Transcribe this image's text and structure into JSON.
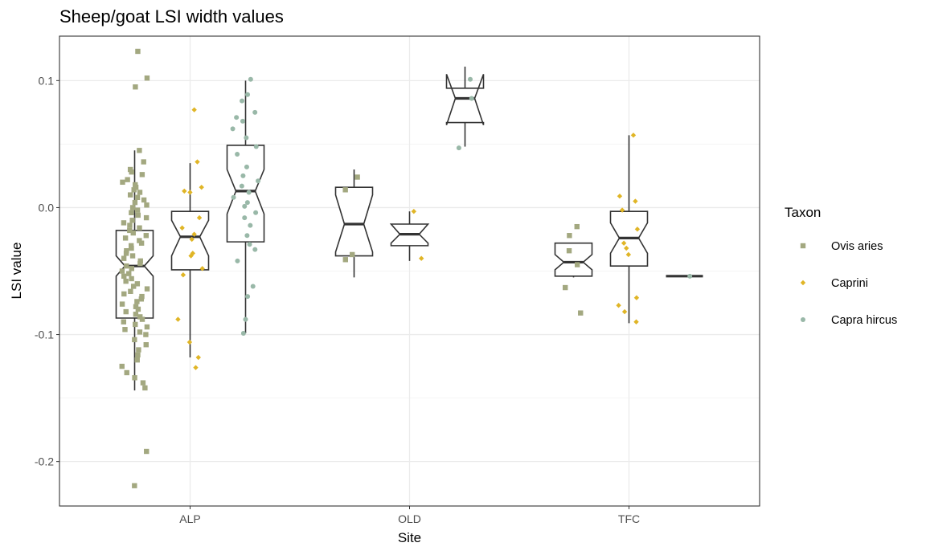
{
  "chart_data": {
    "type": "boxplot",
    "title": "Sheep/goat LSI width values",
    "xlabel": "Site",
    "ylabel": "LSI value",
    "categories": [
      "ALP",
      "OLD",
      "TFC"
    ],
    "ylim": [
      -0.235,
      0.135
    ],
    "yticks": [
      0.1,
      0.0,
      -0.1,
      -0.2
    ],
    "ytick_labels": [
      "0.1",
      "0.0",
      "-0.1",
      "-0.2"
    ],
    "grid": true,
    "legend": {
      "title": "Taxon",
      "placement": "right",
      "entries": [
        "Ovis aries",
        "Caprini",
        "Capra hircus"
      ]
    },
    "series": [
      {
        "name": "Ovis aries",
        "color": "#a3a880",
        "marker": "square",
        "boxes": [
          {
            "category": "ALP",
            "whisker_low": -0.144,
            "q1": -0.087,
            "median": -0.046,
            "q3": -0.018,
            "whisker_high": 0.045,
            "notch_low": -0.054,
            "notch_high": -0.038
          },
          {
            "category": "OLD",
            "whisker_low": -0.055,
            "q1": -0.038,
            "median": -0.013,
            "q3": 0.016,
            "whisker_high": 0.03,
            "notch_low": -0.035,
            "notch_high": 0.01
          },
          {
            "category": "TFC",
            "whisker_low": -0.055,
            "q1": -0.054,
            "median": -0.043,
            "q3": -0.028,
            "whisker_high": -0.028,
            "notch_low": -0.049,
            "notch_high": -0.037
          }
        ],
        "points": [
          {
            "category": "ALP",
            "values": [
              0.123,
              0.102,
              0.095,
              0.045,
              0.036,
              0.03,
              0.028,
              0.026,
              0.022,
              0.02,
              0.018,
              0.016,
              0.014,
              0.012,
              0.01,
              0.008,
              0.006,
              0.004,
              0.002,
              0.0,
              -0.002,
              -0.004,
              -0.006,
              -0.008,
              -0.01,
              -0.012,
              -0.014,
              -0.016,
              -0.018,
              -0.02,
              -0.022,
              -0.024,
              -0.026,
              -0.028,
              -0.03,
              -0.032,
              -0.034,
              -0.036,
              -0.038,
              -0.04,
              -0.042,
              -0.044,
              -0.046,
              -0.048,
              -0.05,
              -0.052,
              -0.054,
              -0.056,
              -0.058,
              -0.06,
              -0.062,
              -0.064,
              -0.066,
              -0.068,
              -0.07,
              -0.072,
              -0.074,
              -0.076,
              -0.078,
              -0.08,
              -0.082,
              -0.084,
              -0.086,
              -0.088,
              -0.09,
              -0.092,
              -0.094,
              -0.096,
              -0.098,
              -0.1,
              -0.104,
              -0.108,
              -0.112,
              -0.116,
              -0.12,
              -0.125,
              -0.13,
              -0.134,
              -0.138,
              -0.142,
              -0.192,
              -0.219
            ]
          },
          {
            "category": "OLD",
            "values": [
              0.024,
              0.014,
              -0.037,
              -0.041
            ]
          },
          {
            "category": "TFC",
            "values": [
              -0.015,
              -0.022,
              -0.034,
              -0.045,
              -0.063,
              -0.083
            ]
          }
        ]
      },
      {
        "name": "Caprini",
        "color": "#e0b526",
        "marker": "diamond",
        "boxes": [
          {
            "category": "ALP",
            "whisker_low": -0.118,
            "q1": -0.049,
            "median": -0.023,
            "q3": -0.003,
            "whisker_high": 0.035,
            "notch_low": -0.038,
            "notch_high": -0.01
          },
          {
            "category": "OLD",
            "whisker_low": -0.042,
            "q1": -0.03,
            "median": -0.021,
            "q3": -0.013,
            "whisker_high": -0.003,
            "notch_low": -0.028,
            "notch_high": -0.013
          },
          {
            "category": "TFC",
            "whisker_low": -0.091,
            "q1": -0.046,
            "median": -0.024,
            "q3": -0.003,
            "whisker_high": 0.057,
            "notch_low": -0.036,
            "notch_high": -0.012
          }
        ],
        "points": [
          {
            "category": "ALP",
            "values": [
              0.077,
              0.036,
              0.016,
              0.013,
              0.012,
              -0.008,
              -0.016,
              -0.021,
              -0.025,
              -0.036,
              -0.038,
              -0.048,
              -0.053,
              -0.088,
              -0.106,
              -0.118,
              -0.126
            ]
          },
          {
            "category": "OLD",
            "values": [
              -0.003,
              -0.04
            ]
          },
          {
            "category": "TFC",
            "values": [
              0.057,
              0.009,
              0.005,
              -0.002,
              -0.017,
              -0.028,
              -0.032,
              -0.037,
              -0.071,
              -0.077,
              -0.082,
              -0.09
            ]
          }
        ]
      },
      {
        "name": "Capra hircus",
        "color": "#99b8a8",
        "marker": "circle",
        "boxes": [
          {
            "category": "ALP",
            "whisker_low": -0.099,
            "q1": -0.027,
            "median": 0.013,
            "q3": 0.049,
            "whisker_high": 0.1,
            "notch_low": -0.005,
            "notch_high": 0.03
          },
          {
            "category": "OLD",
            "whisker_low": 0.048,
            "q1": 0.067,
            "median": 0.086,
            "q3": 0.094,
            "whisker_high": 0.111,
            "notch_low": 0.065,
            "notch_high": 0.105
          },
          {
            "category": "TFC",
            "whisker_low": -0.054,
            "q1": -0.054,
            "median": -0.054,
            "q3": -0.054,
            "whisker_high": -0.054,
            "notch_low": -0.054,
            "notch_high": -0.054
          }
        ],
        "points": [
          {
            "category": "ALP",
            "values": [
              0.101,
              0.089,
              0.084,
              0.075,
              0.071,
              0.068,
              0.062,
              0.055,
              0.048,
              0.042,
              0.032,
              0.025,
              0.021,
              0.017,
              0.012,
              0.008,
              0.004,
              0.001,
              -0.004,
              -0.008,
              -0.014,
              -0.022,
              -0.029,
              -0.033,
              -0.042,
              -0.062,
              -0.07,
              -0.088,
              -0.099
            ]
          },
          {
            "category": "OLD",
            "values": [
              0.101,
              0.086,
              0.047
            ]
          },
          {
            "category": "TFC",
            "values": [
              -0.054
            ]
          }
        ]
      }
    ]
  }
}
